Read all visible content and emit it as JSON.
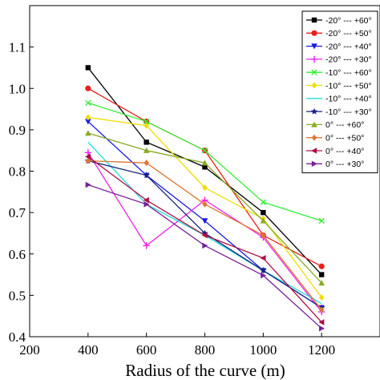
{
  "chart_data": {
    "type": "line",
    "title": "",
    "xlabel": "Radius of the curve (m)",
    "ylabel": "",
    "x": [
      400,
      600,
      800,
      1000,
      1200
    ],
    "xlim": [
      200,
      1400
    ],
    "ylim": [
      0.4,
      1.2
    ],
    "xticks": [
      "200",
      "400",
      "600",
      "800",
      "1000",
      "1200"
    ],
    "yticks": [
      "0.4",
      "0.5",
      "0.6",
      "0.7",
      "0.8",
      "0.9",
      "1.0",
      "1.1"
    ],
    "grid": false,
    "legend_position": "top-right",
    "series": [
      {
        "name": "-20° --- +60°",
        "color": "#000000",
        "marker": "square",
        "values": [
          1.05,
          0.87,
          0.81,
          0.7,
          0.55
        ]
      },
      {
        "name": "-20° --- +50°",
        "color": "#e8201c",
        "marker": "circle",
        "values": [
          1.0,
          0.92,
          0.85,
          0.645,
          0.57
        ]
      },
      {
        "name": "-20° --- +40°",
        "color": "#1a1adf",
        "marker": "triangle-down",
        "values": [
          0.92,
          0.79,
          0.68,
          0.56,
          0.47
        ]
      },
      {
        "name": "-20° --- +30°",
        "color": "#ee22ee",
        "marker": "plus",
        "values": [
          0.845,
          0.62,
          0.73,
          0.64,
          0.46
        ]
      },
      {
        "name": "-10° --- +60°",
        "color": "#33ee33",
        "marker": "cross",
        "values": [
          0.965,
          0.92,
          0.85,
          0.725,
          0.68
        ]
      },
      {
        "name": "-10° --- +50°",
        "color": "#eedd00",
        "marker": "diamond",
        "values": [
          0.93,
          0.91,
          0.76,
          0.685,
          0.495
        ]
      },
      {
        "name": "-10° --- +40°",
        "color": "#22dddd",
        "marker": "none",
        "values": [
          0.87,
          0.72,
          0.645,
          0.56,
          0.48
        ]
      },
      {
        "name": "-10° --- +30°",
        "color": "#1a237e",
        "marker": "star",
        "values": [
          0.825,
          0.79,
          0.65,
          0.56,
          0.47
        ]
      },
      {
        "name": "0° --- +60°",
        "color": "#88aa22",
        "marker": "triangle-up",
        "values": [
          0.892,
          0.85,
          0.82,
          0.68,
          0.53
        ]
      },
      {
        "name": "0° --- +50°",
        "color": "#dd7733",
        "marker": "diamond",
        "values": [
          0.825,
          0.82,
          0.72,
          0.645,
          0.465
        ]
      },
      {
        "name": "0° --- +40°",
        "color": "#aa1144",
        "marker": "triangle-left",
        "values": [
          0.835,
          0.73,
          0.645,
          0.59,
          0.435
        ]
      },
      {
        "name": "0° --- +30°",
        "color": "#772299",
        "marker": "triangle-right",
        "values": [
          0.767,
          0.72,
          0.62,
          0.548,
          0.42
        ]
      }
    ]
  }
}
